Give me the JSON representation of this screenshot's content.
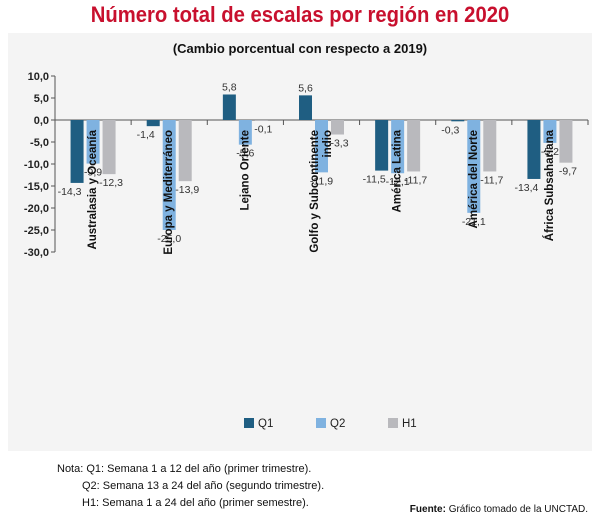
{
  "header": {
    "title": "Número total de escalas por región en 2020",
    "subtitle": "(Cambio porcentual con respecto a 2019)"
  },
  "chart_data": {
    "type": "bar",
    "title": "Número total de escalas por región en 2020",
    "subtitle": "(Cambio porcentual con respecto a 2019)",
    "xlabel": "",
    "ylabel": "",
    "ylim": [
      -30,
      10
    ],
    "yticks": [
      10,
      5,
      0,
      -5,
      -10,
      -15,
      -20,
      -25,
      -30
    ],
    "ytick_labels": [
      "10,0",
      "5,0",
      "0,0",
      "-5,0",
      "-10,0",
      "-15,0",
      "-20,0",
      "-25,0",
      "-30,0"
    ],
    "grid": false,
    "legend_position": "bottom-center",
    "categories": [
      "Australasia y Oceanía",
      "Europa y Mediterráneo",
      "Lejano Oriente",
      "Golfo y Subcontinente indio",
      "América Latina",
      "América del Norte",
      "África Subsahariana"
    ],
    "category_label_lines": [
      [
        "Australasia y Oceanía"
      ],
      [
        "Europa y Mediterráneo"
      ],
      [
        "Lejano Oriente"
      ],
      [
        "Golfo y Subcontinente",
        "indio"
      ],
      [
        "América Latina"
      ],
      [
        "América del Norte"
      ],
      [
        "África Subsahariana"
      ]
    ],
    "series": [
      {
        "name": "Q1",
        "color": "#1f5e82",
        "values": [
          -14.3,
          -1.4,
          5.8,
          5.6,
          -11.5,
          -0.3,
          -13.4
        ],
        "labels": [
          "-14,3",
          "-1,4",
          "5,8",
          "5,6",
          "-11,5",
          "-0,3",
          "-13,4"
        ]
      },
      {
        "name": "Q2",
        "color": "#7fb2e0",
        "values": [
          -9.9,
          -25.0,
          -5.6,
          -11.9,
          -12.1,
          -21.1,
          -5.2
        ],
        "labels": [
          "-9,9",
          "-25,0",
          "-5,6",
          "-11,9",
          "-12,1",
          "-21,1",
          "-5,2"
        ]
      },
      {
        "name": "H1",
        "color": "#b9b9bd",
        "values": [
          -12.3,
          -13.9,
          -0.1,
          -3.3,
          -11.7,
          -11.7,
          -9.7
        ],
        "labels": [
          "-12,3",
          "-13,9",
          "-0,1",
          "-3,3",
          "-11,7",
          "-11,7",
          "-9,7"
        ]
      }
    ]
  },
  "notes": {
    "line1": "Nota: Q1: Semana 1 a 12 del año (primer trimestre).",
    "line2": "Q2: Semana 13 a 24 del año (segundo trimestre).",
    "line3": "H1: Semana 1 a 24 del año (primer semestre)."
  },
  "source": {
    "label": "Fuente:",
    "text": "Gráfico tomado de la UNCTAD."
  }
}
